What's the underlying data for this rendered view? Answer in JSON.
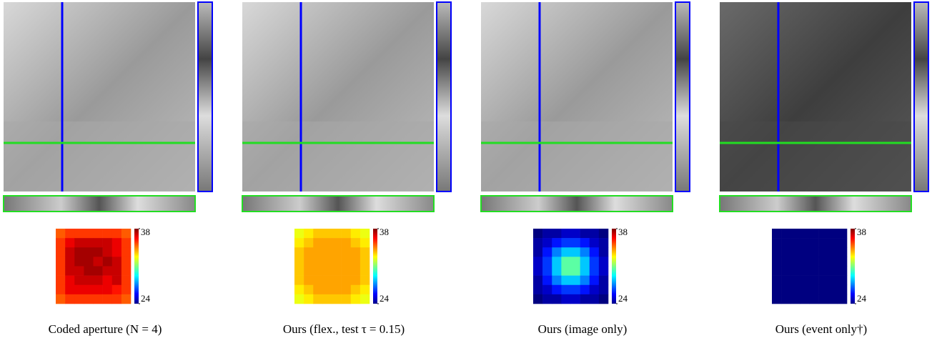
{
  "colorbar": {
    "lim": [
      24,
      38
    ],
    "ticks": [
      24,
      38
    ]
  },
  "panels": [
    {
      "caption": "Coded aperture (N = 4)",
      "heatmap": [
        [
          35,
          35.5,
          35.5,
          35.5,
          35.5,
          35.5,
          35.5,
          35
        ],
        [
          35.5,
          36.5,
          37,
          37,
          37,
          37,
          36.5,
          35.5
        ],
        [
          35.5,
          37,
          37.5,
          37.5,
          37.5,
          37,
          36.5,
          35.5
        ],
        [
          35.5,
          37,
          37.5,
          37.5,
          37,
          37.5,
          37,
          35.5
        ],
        [
          35.5,
          37,
          37,
          37.5,
          37.5,
          37,
          37,
          35.5
        ],
        [
          35.5,
          36.5,
          37,
          37,
          37,
          36.5,
          37,
          35.5
        ],
        [
          35.5,
          36.5,
          36.5,
          36.5,
          36.5,
          36.5,
          36,
          35.5
        ],
        [
          35,
          35.5,
          35.5,
          35.5,
          35.5,
          35.5,
          35.5,
          35
        ]
      ]
    },
    {
      "caption": "Ours (flex., test τ = 0.15)",
      "heatmap": [
        [
          32.5,
          33,
          33.5,
          33.5,
          33.5,
          33.5,
          33,
          32.5
        ],
        [
          33,
          33.5,
          34,
          34,
          34,
          34,
          33.5,
          33
        ],
        [
          33.5,
          34,
          34,
          34,
          34,
          34,
          34,
          33.5
        ],
        [
          33.5,
          34,
          34,
          34,
          34,
          34,
          34,
          33.5
        ],
        [
          33.5,
          34,
          34,
          34,
          34,
          34,
          34,
          33.5
        ],
        [
          33.5,
          34,
          34,
          34,
          34,
          34,
          34,
          33.5
        ],
        [
          33,
          33.5,
          34,
          34,
          34,
          34,
          33.5,
          33
        ],
        [
          32.5,
          33,
          33.5,
          33.5,
          33.5,
          33.5,
          33,
          32.5
        ]
      ]
    },
    {
      "caption": "Ours (image only)",
      "heatmap": [
        [
          24,
          24.5,
          24.5,
          25,
          25,
          24.5,
          24.5,
          24
        ],
        [
          24.5,
          25,
          26,
          26.5,
          26.5,
          26,
          25,
          24.5
        ],
        [
          24.5,
          26,
          27.5,
          28.5,
          28.5,
          27.5,
          26,
          24.5
        ],
        [
          25,
          26.5,
          28.5,
          30.5,
          30.5,
          28.5,
          26.5,
          25
        ],
        [
          25,
          26.5,
          28.5,
          30.5,
          30.5,
          28.5,
          26.5,
          25
        ],
        [
          24.5,
          26,
          27.5,
          28.5,
          28.5,
          27.5,
          26,
          24.5
        ],
        [
          24.5,
          25,
          26,
          26.5,
          26.5,
          26,
          25,
          24.5
        ],
        [
          24,
          24.5,
          24.5,
          25,
          25,
          24.5,
          24.5,
          24
        ]
      ]
    },
    {
      "caption": "Ours (event only†)",
      "heatmap": [
        [
          24,
          24,
          24,
          24,
          24,
          24,
          24,
          24
        ],
        [
          24,
          24,
          24,
          24,
          24,
          24,
          24,
          24
        ],
        [
          24,
          24,
          24,
          24,
          24,
          24,
          24,
          24
        ],
        [
          24,
          24,
          24,
          24,
          24,
          24,
          24,
          24
        ],
        [
          24,
          24,
          24,
          24,
          24,
          24,
          24,
          24
        ],
        [
          24,
          24,
          24,
          24,
          24,
          24,
          24,
          24
        ],
        [
          24,
          24,
          24,
          24,
          24,
          24,
          24,
          24
        ],
        [
          24,
          24,
          24,
          24,
          24,
          24,
          24,
          24
        ]
      ]
    }
  ]
}
